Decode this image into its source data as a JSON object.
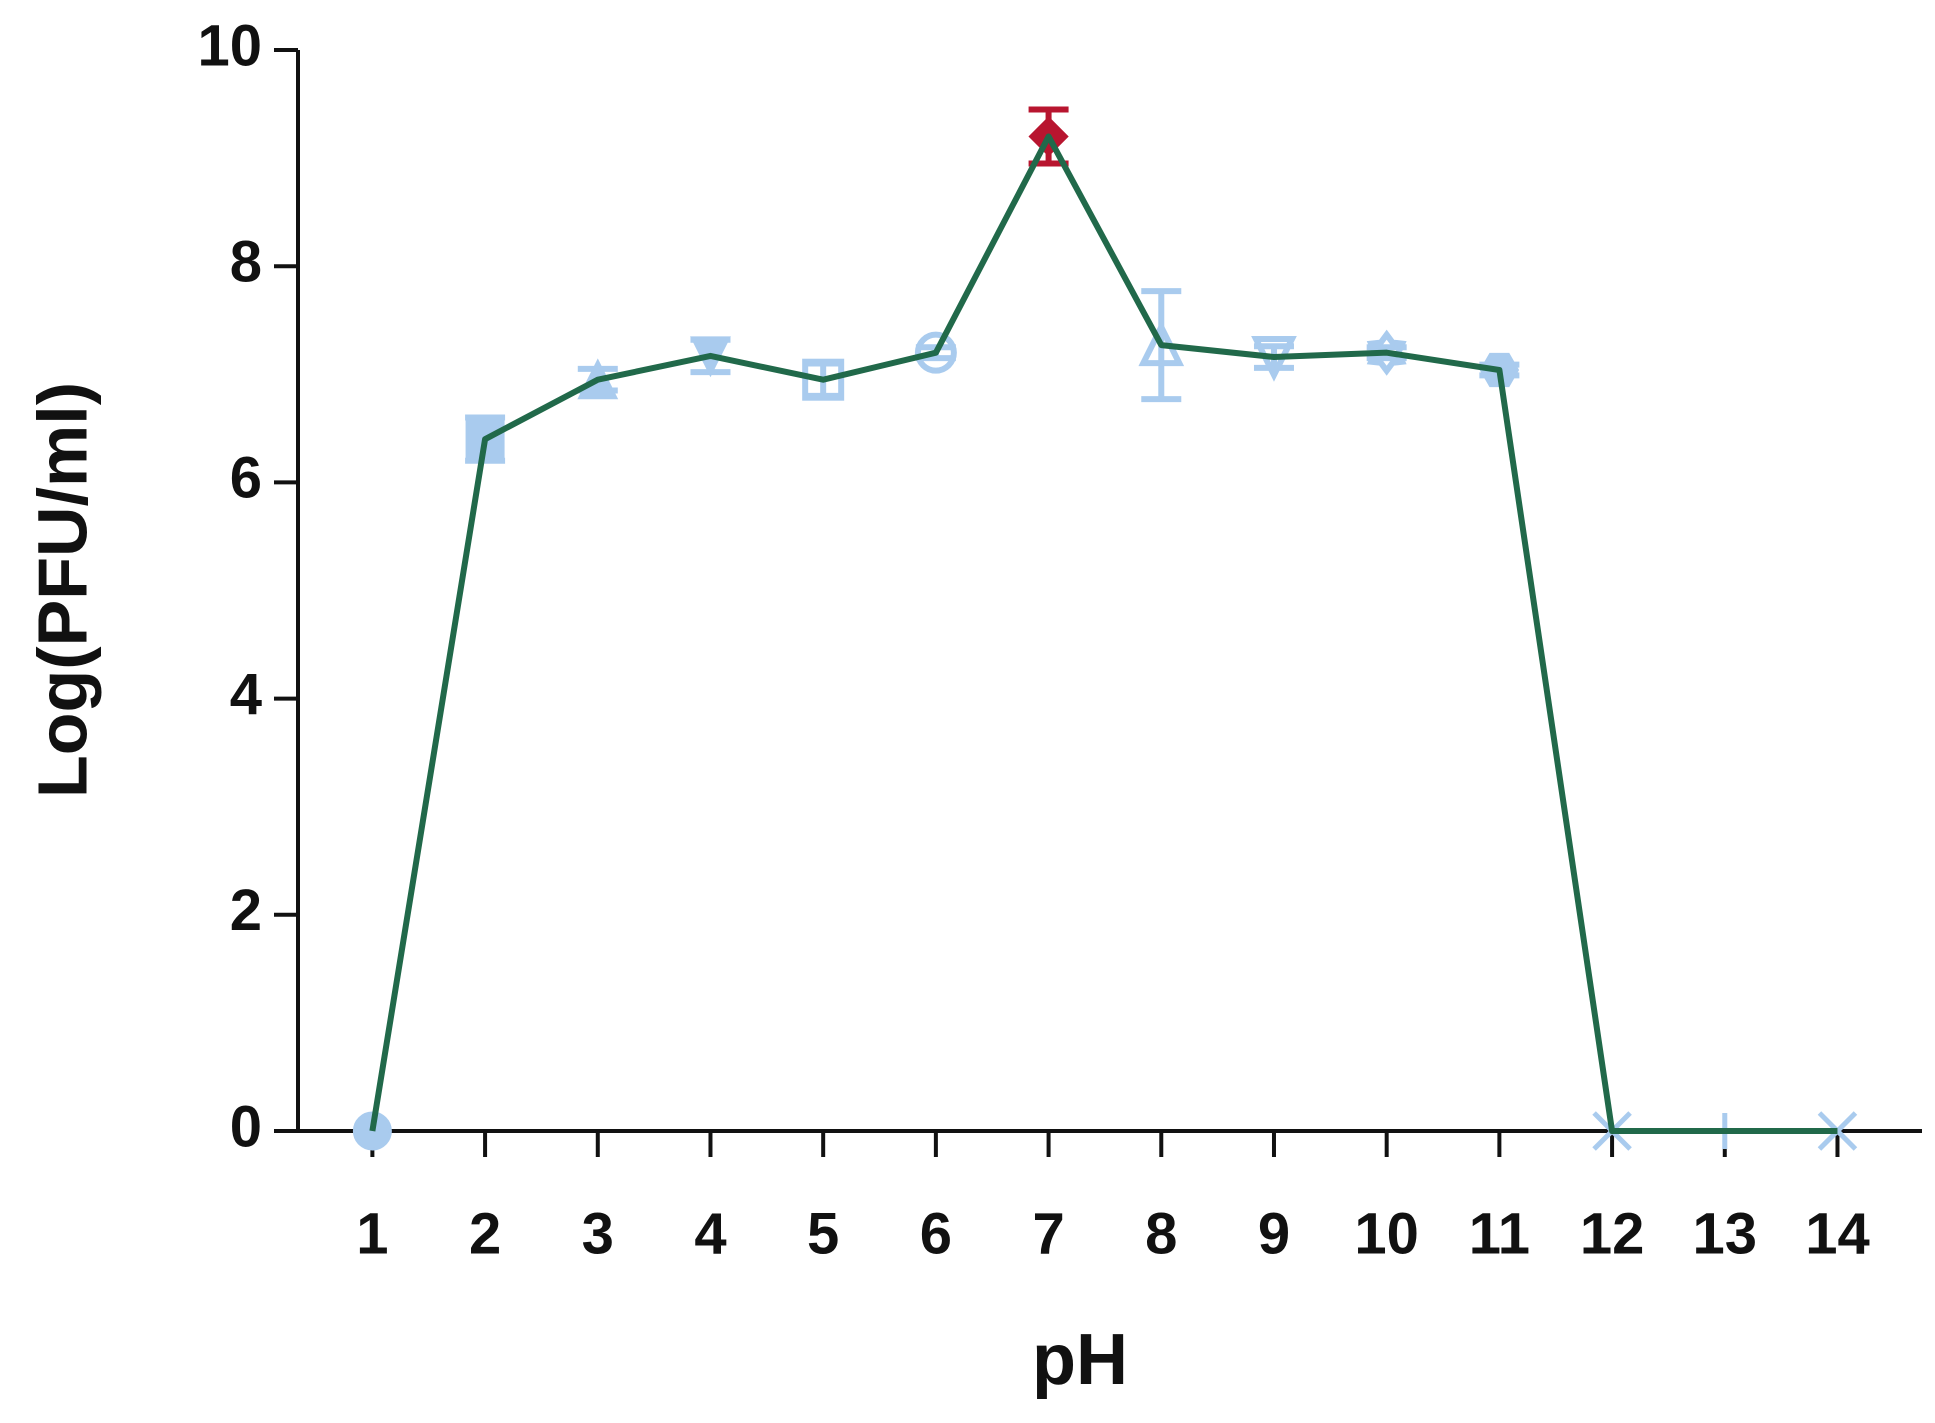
{
  "chart_data": {
    "type": "line",
    "x_label": "pH",
    "y_label": "Log(PFU/ml)",
    "x": [
      1,
      2,
      3,
      4,
      5,
      6,
      7,
      8,
      9,
      10,
      11,
      12,
      13,
      14
    ],
    "series": [
      {
        "color": "#21694a",
        "values": [
          0,
          6.4,
          6.95,
          7.17,
          6.95,
          7.2,
          9.2,
          7.27,
          7.16,
          7.2,
          7.04,
          0,
          0,
          0
        ],
        "errors": [
          0,
          0.2,
          0.1,
          0.15,
          0.15,
          0.05,
          0.25,
          0.5,
          0.1,
          0.05,
          0.05,
          0,
          0,
          0
        ],
        "marker_colors": [
          "#a9cbee",
          "#a9cbee",
          "#a9cbee",
          "#a9cbee",
          "#a9cbee",
          "#a9cbee",
          "#b8152f",
          "#a9cbee",
          "#a9cbee",
          "#a9cbee",
          "#a9cbee",
          "#a9cbee",
          "#a9cbee",
          "#a9cbee"
        ],
        "markers": [
          "circle-filled",
          "square-filled",
          "triangle-filled",
          "triangle-down-filled",
          "square-open",
          "circle-open",
          "diamond-filled",
          "triangle-open",
          "triangle-down-open",
          "star-open",
          "hexagon-filled",
          "x",
          "plus",
          "x"
        ]
      }
    ],
    "xlim": [
      0.34,
      14.75
    ],
    "xticks": [
      1,
      2,
      3,
      4,
      5,
      6,
      7,
      8,
      9,
      10,
      11,
      12,
      13,
      14
    ],
    "ylim": [
      0,
      10
    ],
    "yticks": [
      0,
      2,
      4,
      6,
      8,
      10
    ],
    "grid": false
  }
}
